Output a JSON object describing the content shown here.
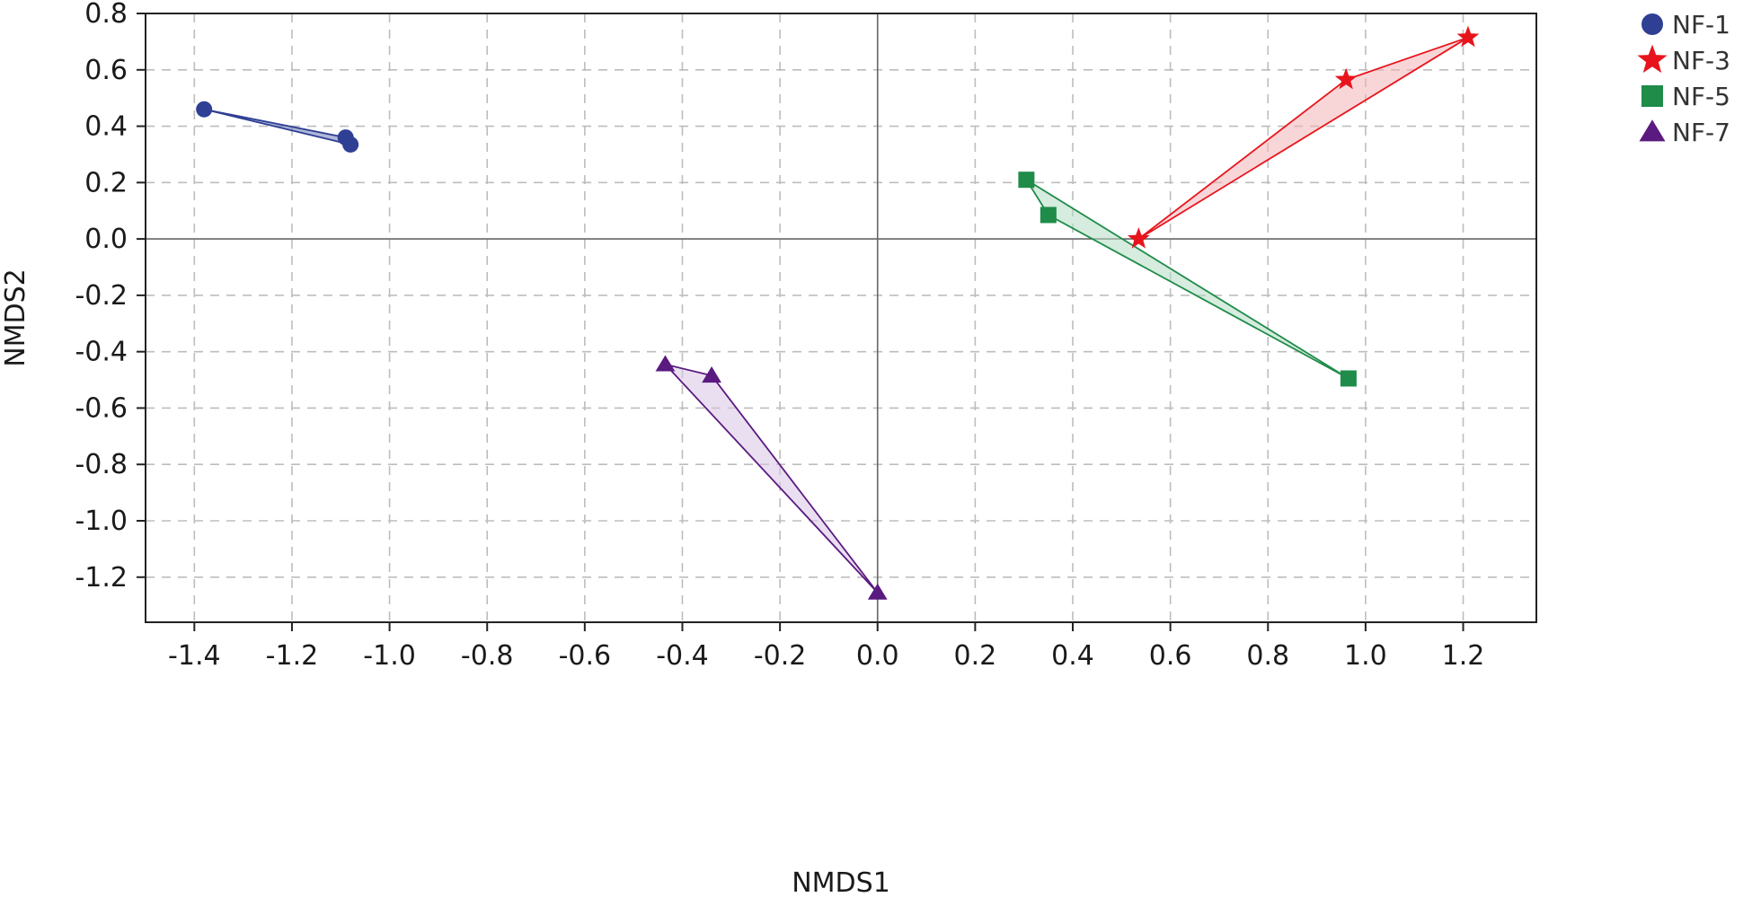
{
  "chart_data": {
    "type": "scatter",
    "title": "",
    "xlabel": "NMDS1",
    "ylabel": "NMDS2",
    "xlim": [
      -1.5,
      1.35
    ],
    "ylim": [
      -1.36,
      0.8
    ],
    "xticks": [
      -1.4,
      -1.2,
      -1.0,
      -0.8,
      -0.6,
      -0.4,
      -0.2,
      0.0,
      0.2,
      0.4,
      0.6,
      0.8,
      1.0,
      1.2
    ],
    "xtick_labels": [
      "-1.4",
      "-1.2",
      "-1.0",
      "-0.8",
      "-0.6",
      "-0.4",
      "-0.2",
      "0.0",
      "0.2",
      "0.4",
      "0.6",
      "0.8",
      "1.0",
      "1.2"
    ],
    "yticks": [
      0.8,
      0.6,
      0.4,
      0.2,
      0.0,
      -0.2,
      -0.4,
      -0.6,
      -0.8,
      -1.0,
      -1.2
    ],
    "ytick_labels": [
      "0.8",
      "0.6",
      "0.4",
      "0.2",
      "0.0",
      "-0.2",
      "-0.4",
      "-0.6",
      "-0.8",
      "-1.0",
      "-1.2"
    ],
    "grid": true,
    "grid_style": "dashed",
    "zero_lines": true,
    "legend_position": "right",
    "series": [
      {
        "name": "NF-1",
        "marker": "circle",
        "color": "#2e3f94",
        "fill": "#6f7bb8",
        "points": [
          [
            -1.38,
            0.46
          ],
          [
            -1.09,
            0.36
          ],
          [
            -1.08,
            0.335
          ]
        ]
      },
      {
        "name": "NF-3",
        "marker": "star",
        "color": "#e8141c",
        "fill": "#f2b5b8",
        "points": [
          [
            0.535,
            0.0
          ],
          [
            0.96,
            0.565
          ],
          [
            1.21,
            0.715
          ]
        ]
      },
      {
        "name": "NF-5",
        "marker": "square",
        "color": "#1f8c4a",
        "fill": "#b5dcc2",
        "points": [
          [
            0.305,
            0.21
          ],
          [
            0.35,
            0.085
          ],
          [
            0.965,
            -0.495
          ]
        ]
      },
      {
        "name": "NF-7",
        "marker": "triangle",
        "color": "#5a1a80",
        "fill": "#d8c4e4",
        "points": [
          [
            -0.435,
            -0.445
          ],
          [
            -0.34,
            -0.485
          ],
          [
            0.0,
            -1.255
          ]
        ]
      }
    ]
  }
}
